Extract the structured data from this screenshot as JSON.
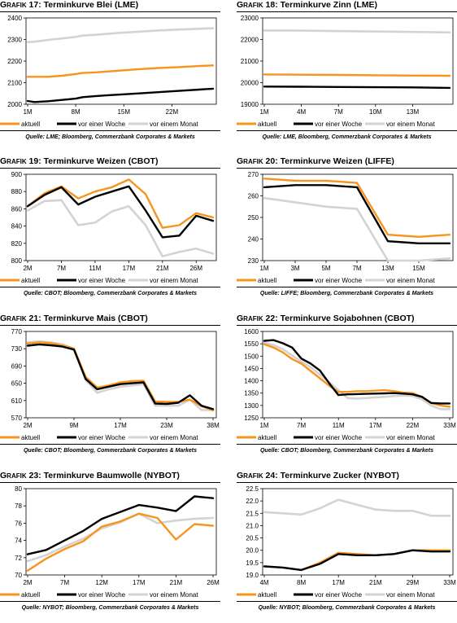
{
  "colors": {
    "aktuell": "#f7941d",
    "woche": "#000000",
    "monat": "#d3d3d3"
  },
  "chart_data": [
    {
      "type": "line",
      "prefix": "Grafik",
      "num": "17:",
      "title": "Terminkurve Blei (LME)",
      "ylim": [
        2000,
        2400
      ],
      "yticks": [
        "2400",
        "2300",
        "2200",
        "2100",
        "2000"
      ],
      "xlabels": [
        "1M",
        "8M",
        "15M",
        "22M"
      ],
      "xlabel_pos": [
        0,
        7,
        14,
        21
      ],
      "xmax": 27,
      "legend": [
        "aktuell",
        "vor einer Woche",
        "vor einem Monat"
      ],
      "source": "Quelle: LME; Bloomberg, Commerzbank Corporates & Markets",
      "series": [
        {
          "key": "monat",
          "x": [
            0,
            1,
            3,
            5,
            7,
            8,
            10,
            13,
            16,
            19,
            22,
            25,
            27
          ],
          "y": [
            2288,
            2290,
            2298,
            2305,
            2312,
            2318,
            2322,
            2330,
            2336,
            2342,
            2346,
            2350,
            2352
          ]
        },
        {
          "key": "aktuell",
          "x": [
            0,
            3,
            5,
            7,
            8,
            10,
            13,
            16,
            19,
            22,
            25,
            27
          ],
          "y": [
            2127,
            2127,
            2132,
            2140,
            2145,
            2148,
            2155,
            2162,
            2168,
            2172,
            2177,
            2180
          ]
        },
        {
          "key": "woche",
          "x": [
            0,
            1,
            3,
            5,
            7,
            8,
            10,
            13,
            16,
            19,
            22,
            25,
            27
          ],
          "y": [
            2015,
            2010,
            2014,
            2020,
            2026,
            2033,
            2038,
            2044,
            2050,
            2056,
            2062,
            2068,
            2072
          ]
        }
      ]
    },
    {
      "type": "line",
      "prefix": "Grafik",
      "num": "18:",
      "title": "Terminkurve Zinn (LME)",
      "ylim": [
        19000,
        23000
      ],
      "yticks": [
        "23000",
        "22000",
        "21000",
        "20000",
        "19000"
      ],
      "xlabels": [
        "1M",
        "4M",
        "7M",
        "10M",
        "13M"
      ],
      "xlabel_pos": [
        0,
        3,
        6,
        9,
        12
      ],
      "xmax": 15,
      "legend": [
        "aktuell",
        "vor einer Woche",
        "vor einem Monat"
      ],
      "source": "Quelle: LME, Bloomberg, Commerzbank Corporates & Markets",
      "series": [
        {
          "key": "monat",
          "x": [
            0,
            3,
            6,
            9,
            12,
            15
          ],
          "y": [
            22420,
            22410,
            22390,
            22370,
            22350,
            22330
          ]
        },
        {
          "key": "aktuell",
          "x": [
            0,
            3,
            6,
            9,
            12,
            15
          ],
          "y": [
            20380,
            20370,
            20360,
            20345,
            20330,
            20320
          ]
        },
        {
          "key": "woche",
          "x": [
            0,
            3,
            6,
            9,
            12,
            15
          ],
          "y": [
            19820,
            19810,
            19800,
            19790,
            19780,
            19760
          ]
        }
      ]
    },
    {
      "type": "line",
      "prefix": "Grafik",
      "num": "19:",
      "title": "Terminkurve Weizen (CBOT)",
      "ylim": [
        800,
        900
      ],
      "yticks": [
        "900",
        "880",
        "860",
        "840",
        "820",
        "800"
      ],
      "xlabels": [
        "2M",
        "7M",
        "11M",
        "17M",
        "21M",
        "26M"
      ],
      "xlabel_pos": [
        0,
        4,
        8,
        12,
        16,
        20
      ],
      "xmax": 22,
      "legend": [
        "aktuell",
        "vor einer Woche",
        "vor einem Monat"
      ],
      "source": "Quelle: CBOT; Bloomberg, Commerzbank Corporates & Markets",
      "series": [
        {
          "key": "monat",
          "x": [
            0,
            2,
            4,
            6,
            8,
            10,
            12,
            14,
            16,
            18,
            20,
            22
          ],
          "y": [
            858,
            869,
            870,
            841,
            844,
            857,
            863,
            841,
            805,
            810,
            814,
            808
          ]
        },
        {
          "key": "aktuell",
          "x": [
            0,
            2,
            4,
            6,
            8,
            10,
            12,
            14,
            16,
            18,
            20,
            22
          ],
          "y": [
            863,
            878,
            886,
            872,
            880,
            885,
            894,
            877,
            838,
            841,
            855,
            850
          ]
        },
        {
          "key": "woche",
          "x": [
            0,
            2,
            4,
            6,
            8,
            10,
            12,
            14,
            16,
            18,
            20,
            22
          ],
          "y": [
            863,
            876,
            885,
            865,
            874,
            880,
            886,
            858,
            827,
            829,
            852,
            846
          ]
        }
      ]
    },
    {
      "type": "line",
      "prefix": "Grafik",
      "num": "20:",
      "title": "Terminkurve Weizen (LIFFE)",
      "ylim": [
        230,
        270
      ],
      "yticks": [
        "270",
        "260",
        "250",
        "240",
        "230"
      ],
      "xlabels": [
        "1M",
        "3M",
        "5M",
        "7M",
        "13M",
        "15M"
      ],
      "xlabel_pos": [
        0,
        2,
        4,
        6,
        8,
        10
      ],
      "xmax": 12,
      "legend": [
        "aktuell",
        "vor einer Woche",
        "vor einem Monat"
      ],
      "source": "Quelle: LIFFE; Bloomberg, Commerzbank Corporates & Markets",
      "series": [
        {
          "key": "monat",
          "x": [
            0,
            2,
            4,
            6,
            8,
            10,
            12
          ],
          "y": [
            259,
            257,
            255,
            254,
            230,
            230,
            231
          ]
        },
        {
          "key": "aktuell",
          "x": [
            0,
            2,
            4,
            6,
            8,
            10,
            12
          ],
          "y": [
            268,
            267,
            267,
            266,
            242,
            241,
            242
          ]
        },
        {
          "key": "woche",
          "x": [
            0,
            2,
            4,
            6,
            8,
            10,
            12
          ],
          "y": [
            264,
            265,
            265,
            264,
            239,
            238,
            238
          ]
        }
      ]
    },
    {
      "type": "line",
      "prefix": "Grafik",
      "num": "21:",
      "title": "Terminkurve Mais (CBOT)",
      "ylim": [
        570,
        770
      ],
      "yticks": [
        "770",
        "730",
        "690",
        "650",
        "610",
        "570"
      ],
      "xlabels": [
        "2M",
        "9M",
        "17M",
        "23M",
        "38M"
      ],
      "xlabel_pos": [
        0,
        4,
        8,
        12,
        16
      ],
      "xmax": 16,
      "legend": [
        "aktuell",
        "vor einer Woche",
        "vor einem Monat"
      ],
      "source": "Quelle: CBOT; Bloomberg, Commerzbank Corporates & Markets",
      "series": [
        {
          "key": "monat",
          "x": [
            0,
            1,
            2,
            3,
            4,
            5,
            6,
            7,
            8,
            9,
            10,
            11,
            12,
            13,
            14,
            15,
            16
          ],
          "y": [
            745,
            747,
            745,
            740,
            730,
            658,
            628,
            636,
            642,
            645,
            648,
            598,
            598,
            598,
            612,
            588,
            588
          ]
        },
        {
          "key": "aktuell",
          "x": [
            0,
            1,
            2,
            3,
            4,
            5,
            6,
            7,
            8,
            9,
            10,
            11,
            12,
            13,
            14,
            15,
            16
          ],
          "y": [
            742,
            745,
            743,
            738,
            730,
            665,
            640,
            645,
            652,
            655,
            656,
            608,
            607,
            607,
            612,
            597,
            587
          ]
        },
        {
          "key": "woche",
          "x": [
            0,
            1,
            2,
            3,
            4,
            5,
            6,
            7,
            8,
            9,
            10,
            11,
            12,
            13,
            14,
            15,
            16
          ],
          "y": [
            737,
            740,
            738,
            735,
            728,
            660,
            636,
            642,
            648,
            650,
            652,
            603,
            602,
            605,
            622,
            598,
            590
          ]
        }
      ]
    },
    {
      "type": "line",
      "prefix": "Grafik",
      "num": "22:",
      "title": "Terminkurve Sojabohnen (CBOT)",
      "ylim": [
        1250,
        1600
      ],
      "yticks": [
        "1600",
        "1550",
        "1500",
        "1450",
        "1400",
        "1350",
        "1300",
        "1250"
      ],
      "xlabels": [
        "1M",
        "7M",
        "11M",
        "17M",
        "22M",
        "33M"
      ],
      "xlabel_pos": [
        0,
        4,
        8,
        12,
        16,
        20
      ],
      "xmax": 20,
      "legend": [
        "aktuell",
        "vor einer Woche",
        "vor einem Monat"
      ],
      "source": "Quelle: CBOT; Bloomberg, Commerzbank Corporates & Markets",
      "series": [
        {
          "key": "monat",
          "x": [
            0,
            1,
            2,
            3,
            4,
            5,
            6,
            7,
            8,
            9,
            10,
            11,
            12,
            13,
            14,
            15,
            16,
            17,
            18,
            19,
            20
          ],
          "y": [
            1555,
            1545,
            1528,
            1503,
            1478,
            1455,
            1425,
            1395,
            1362,
            1330,
            1328,
            1330,
            1333,
            1335,
            1338,
            1340,
            1338,
            1325,
            1300,
            1285,
            1285
          ]
        },
        {
          "key": "aktuell",
          "x": [
            0,
            1,
            2,
            3,
            4,
            5,
            6,
            7,
            8,
            9,
            10,
            11,
            12,
            13,
            14,
            15,
            16,
            17,
            18,
            19,
            20
          ],
          "y": [
            1548,
            1535,
            1515,
            1488,
            1470,
            1440,
            1410,
            1380,
            1355,
            1355,
            1358,
            1358,
            1360,
            1362,
            1358,
            1352,
            1350,
            1335,
            1310,
            1300,
            1295
          ]
        },
        {
          "key": "woche",
          "x": [
            0,
            1,
            2,
            3,
            4,
            5,
            6,
            7,
            8,
            9,
            10,
            11,
            12,
            13,
            14,
            15,
            16,
            17,
            18,
            19,
            20
          ],
          "y": [
            1562,
            1565,
            1552,
            1535,
            1490,
            1470,
            1442,
            1390,
            1342,
            1345,
            1346,
            1347,
            1348,
            1349,
            1350,
            1348,
            1345,
            1335,
            1310,
            1308,
            1308
          ]
        }
      ]
    },
    {
      "type": "line",
      "prefix": "Grafik",
      "num": "23:",
      "title": "Terminkurve Baumwolle (NYBOT)",
      "ylim": [
        70,
        80
      ],
      "yticks": [
        "80",
        "78",
        "76",
        "74",
        "72",
        "70"
      ],
      "xlabels": [
        "2M",
        "7M",
        "12M",
        "17M",
        "21M",
        "26M"
      ],
      "xlabel_pos": [
        0,
        2,
        4,
        6,
        8,
        10
      ],
      "xmax": 10,
      "legend": [
        "aktuell",
        "vor einer Woche",
        "vor einem Monat"
      ],
      "source": "Quelle: NYBOT; Bloomberg, Commerzbank Corporates & Markets",
      "series": [
        {
          "key": "monat",
          "x": [
            0,
            1,
            2,
            3,
            4,
            5,
            6,
            7,
            8,
            9,
            10
          ],
          "y": [
            71.6,
            72.3,
            73.3,
            74.2,
            75.4,
            76.1,
            77.1,
            76.0,
            76.3,
            76.5,
            76.6
          ]
        },
        {
          "key": "aktuell",
          "x": [
            0,
            1,
            2,
            3,
            4,
            5,
            6,
            7,
            8,
            9,
            10
          ],
          "y": [
            70.5,
            71.9,
            73.0,
            73.9,
            75.6,
            76.2,
            77.1,
            76.6,
            74.1,
            75.9,
            75.7
          ]
        },
        {
          "key": "woche",
          "x": [
            0,
            1,
            2,
            3,
            4,
            5,
            6,
            7,
            8,
            9,
            10
          ],
          "y": [
            72.4,
            72.9,
            74.0,
            75.1,
            76.5,
            77.3,
            78.1,
            77.8,
            77.4,
            79.1,
            78.9
          ]
        }
      ]
    },
    {
      "type": "line",
      "prefix": "Grafik",
      "num": "24:",
      "title": "Terminkurve Zucker (NYBOT)",
      "ylim": [
        19,
        22.5
      ],
      "yticks": [
        "22.5",
        "22.0",
        "21.5",
        "21.0",
        "20.5",
        "20.0",
        "19.5",
        "19.0"
      ],
      "xlabels": [
        "4M",
        "8M",
        "17M",
        "21M",
        "29M",
        "33M"
      ],
      "xlabel_pos": [
        0,
        2,
        4,
        6,
        8,
        10
      ],
      "xmax": 10,
      "legend": [
        "aktuell",
        "vor einer Woche",
        "vor einem Monat"
      ],
      "source": "Quelle: NYBOT; Bloomberg, Commerzbank Corporates & Markets",
      "series": [
        {
          "key": "monat",
          "x": [
            0,
            1,
            2,
            3,
            4,
            5,
            6,
            7,
            8,
            9,
            10
          ],
          "y": [
            21.55,
            21.5,
            21.45,
            21.7,
            22.05,
            21.85,
            21.65,
            21.6,
            21.6,
            21.4,
            21.4
          ]
        },
        {
          "key": "aktuell",
          "x": [
            0,
            1,
            2,
            3,
            4,
            5,
            6,
            7,
            8,
            9,
            10
          ],
          "y": [
            19.35,
            19.3,
            19.2,
            19.5,
            19.9,
            19.85,
            19.8,
            19.85,
            20.0,
            20.0,
            20.0
          ]
        },
        {
          "key": "woche",
          "x": [
            0,
            1,
            2,
            3,
            4,
            5,
            6,
            7,
            8,
            9,
            10
          ],
          "y": [
            19.35,
            19.3,
            19.2,
            19.45,
            19.85,
            19.8,
            19.8,
            19.85,
            20.0,
            19.95,
            19.95
          ]
        }
      ]
    }
  ]
}
